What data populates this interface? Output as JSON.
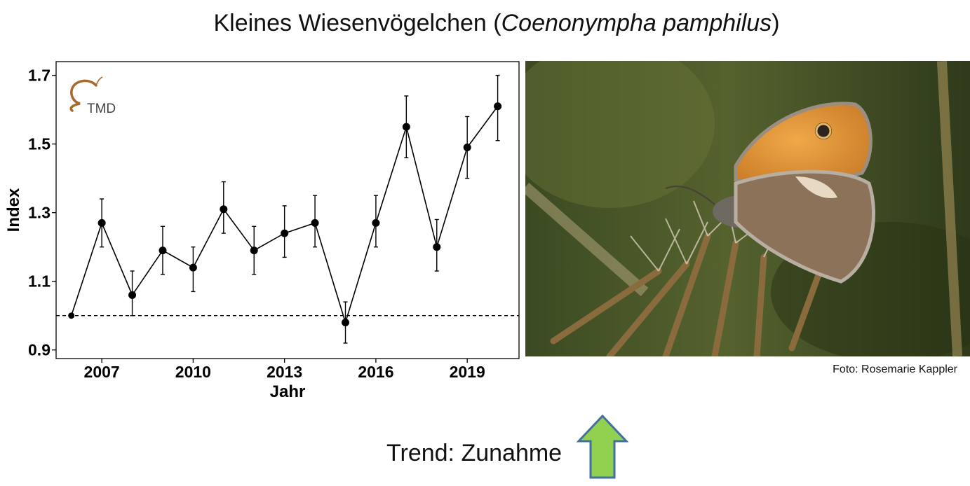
{
  "title": {
    "common_name": "Kleines Wiesenvögelchen",
    "open_paren": " (",
    "scientific_name": "Coenonympha pamphilus",
    "close_paren": ")"
  },
  "logo": {
    "text": "TMD",
    "color": "#a8692a"
  },
  "photo": {
    "credit": "Foto: Rosemarie Kappler"
  },
  "trend": {
    "label": "Trend: Zunahme",
    "arrow_icon": "up-arrow-icon",
    "arrow_fill": "#92d050",
    "arrow_stroke": "#41719c"
  },
  "chart_data": {
    "type": "line",
    "xlabel": "Jahr",
    "ylabel": "Index",
    "xlim": [
      2005.5,
      2020.7
    ],
    "ylim": [
      0.875,
      1.74
    ],
    "x_ticks": [
      2007,
      2010,
      2013,
      2016,
      2019
    ],
    "y_ticks": [
      0.9,
      1.1,
      1.3,
      1.5,
      1.7
    ],
    "reference_line": {
      "y": 1.0,
      "style": "dashed"
    },
    "grid": false,
    "series": [
      {
        "x": [
          2006,
          2007,
          2008,
          2009,
          2010,
          2011,
          2012,
          2013,
          2014,
          2015,
          2016,
          2017,
          2018,
          2019,
          2020
        ],
        "y": [
          1.0,
          1.27,
          1.06,
          1.19,
          1.14,
          1.31,
          1.19,
          1.24,
          1.27,
          0.98,
          1.27,
          1.55,
          1.2,
          1.49,
          1.61
        ],
        "y_lower": [
          null,
          1.2,
          1.0,
          1.12,
          1.07,
          1.24,
          1.12,
          1.17,
          1.2,
          0.92,
          1.2,
          1.46,
          1.13,
          1.4,
          1.51
        ],
        "y_upper": [
          null,
          1.34,
          1.13,
          1.26,
          1.2,
          1.39,
          1.26,
          1.32,
          1.35,
          1.04,
          1.35,
          1.64,
          1.28,
          1.58,
          1.7
        ]
      }
    ]
  }
}
